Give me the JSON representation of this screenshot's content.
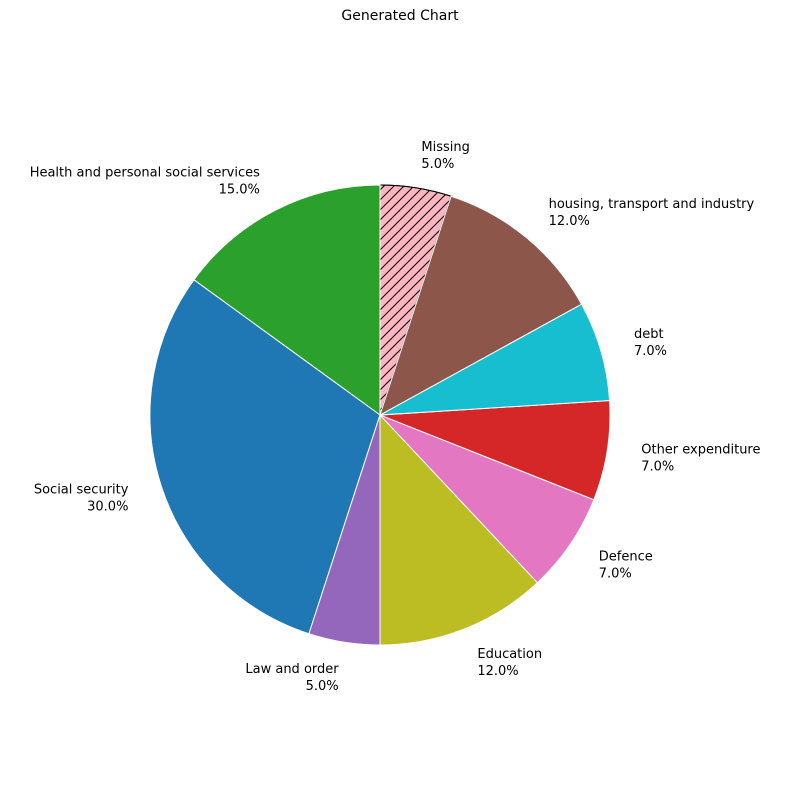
{
  "chart_data": {
    "type": "pie",
    "title": "Generated Chart",
    "start": "top, clockwise for hatched slice; counter-clockwise order",
    "slices": [
      {
        "label": "Missing",
        "pct_label": "5.0%",
        "value": 5.0,
        "color": "#ffb6c1",
        "hatched": true
      },
      {
        "label": "Health and personal social services",
        "pct_label": "15.0%",
        "value": 15.0,
        "color": "#2ca02c",
        "hatched": false
      },
      {
        "label": "Social security",
        "pct_label": "30.0%",
        "value": 30.0,
        "color": "#1f77b4",
        "hatched": false
      },
      {
        "label": "Law and order",
        "pct_label": "5.0%",
        "value": 5.0,
        "color": "#9467bd",
        "hatched": false
      },
      {
        "label": "Education",
        "pct_label": "12.0%",
        "value": 12.0,
        "color": "#bcbd22",
        "hatched": false
      },
      {
        "label": "Defence",
        "pct_label": "7.0%",
        "value": 7.0,
        "color": "#e377c2",
        "hatched": false
      },
      {
        "label": "Other expenditure",
        "pct_label": "7.0%",
        "value": 7.0,
        "color": "#d62728",
        "hatched": false
      },
      {
        "label": "debt",
        "pct_label": "7.0%",
        "value": 7.0,
        "color": "#17becf",
        "hatched": false
      },
      {
        "label": "housing, transport and industry",
        "pct_label": "12.0%",
        "value": 12.0,
        "color": "#8c564b",
        "hatched": false
      }
    ]
  }
}
